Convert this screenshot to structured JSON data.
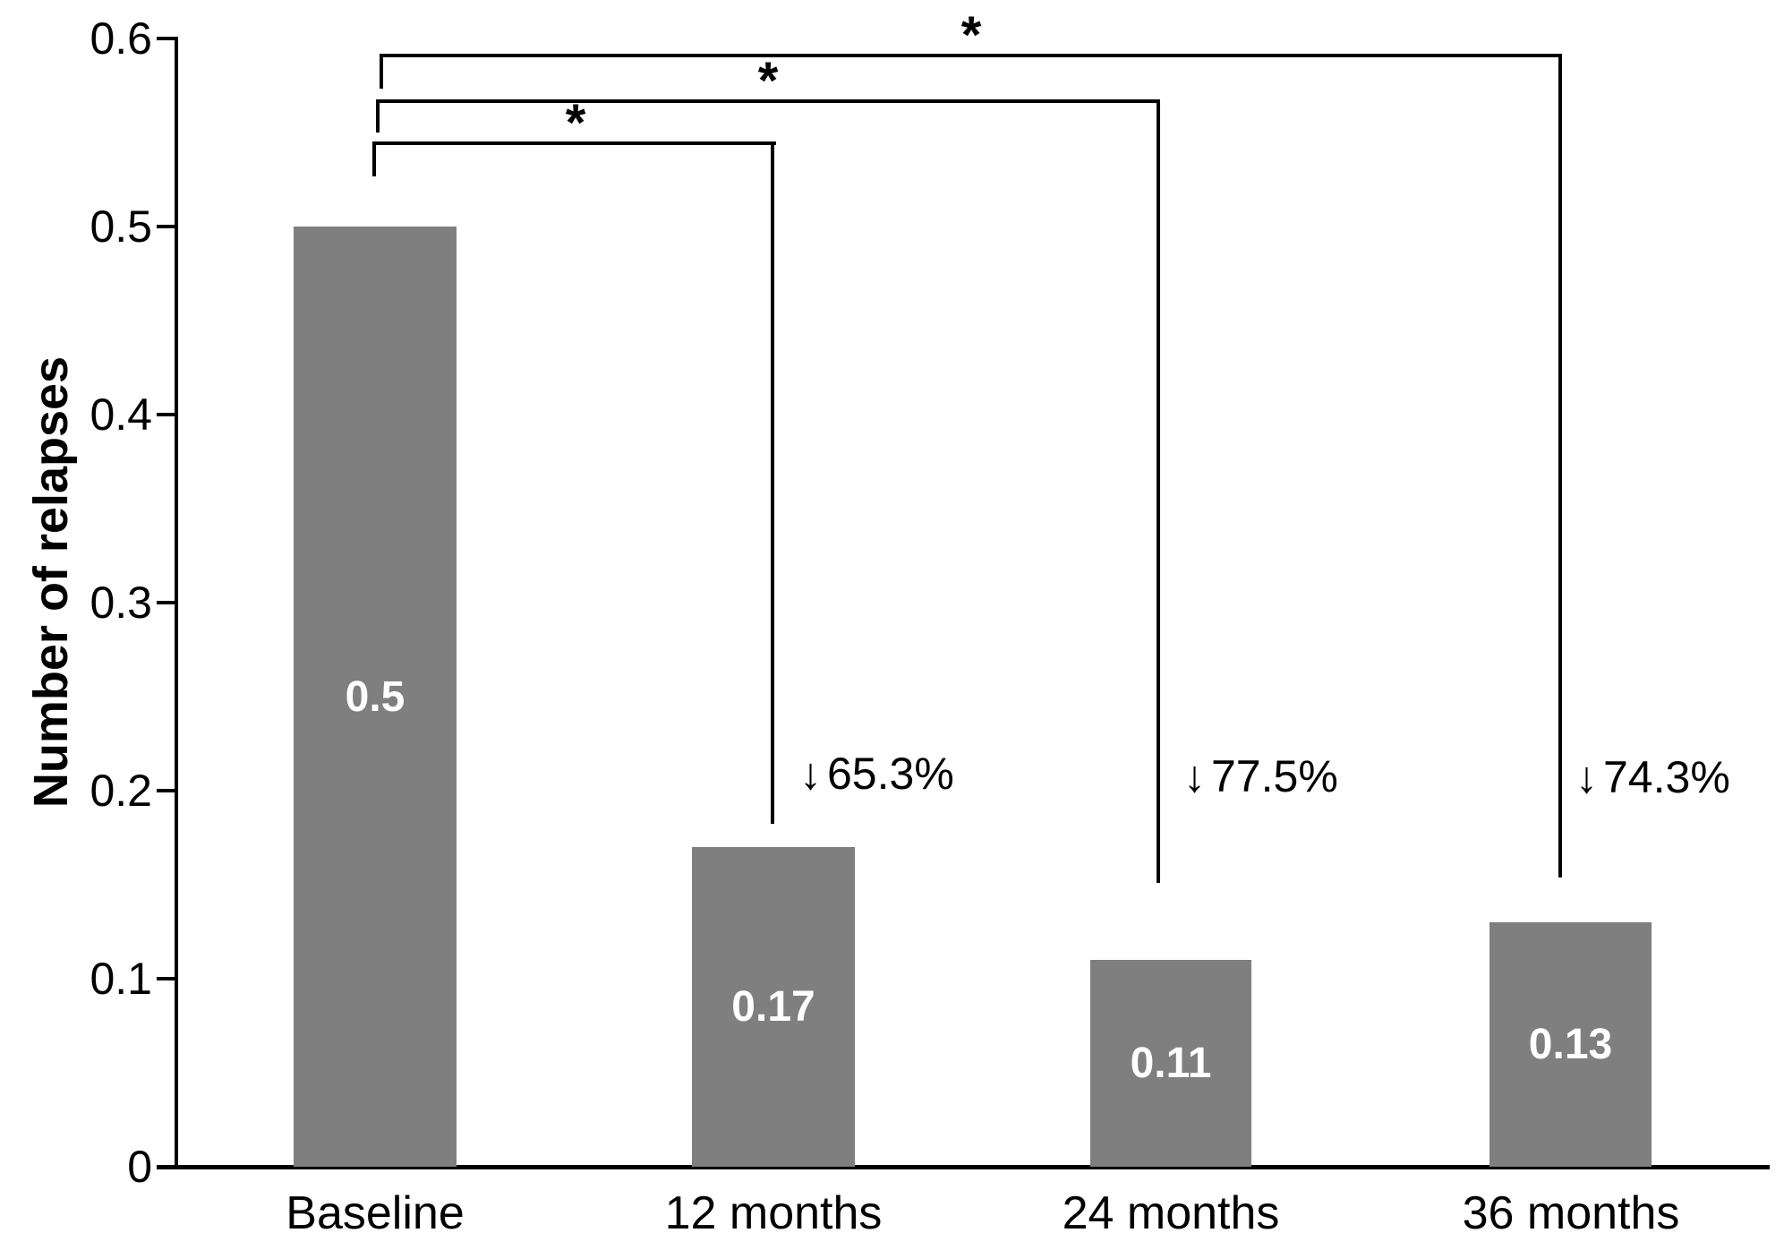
{
  "chart_data": {
    "type": "bar",
    "title": "",
    "xlabel": "",
    "ylabel": "Number of relapses",
    "ylim": [
      0,
      0.6
    ],
    "grid": false,
    "legend": false,
    "bar_color": "#7f7f7f",
    "bar_label_color": "#ffffff",
    "ytick_values": [
      0,
      0.1,
      0.2,
      0.3,
      0.4,
      0.5,
      0.6
    ],
    "ytick_labels": [
      "0",
      "0.1",
      "0.2",
      "0.3",
      "0.4",
      "0.5",
      "0.6"
    ],
    "categories": [
      "Baseline",
      "12 months",
      "24 months",
      "36 months"
    ],
    "values": [
      0.5,
      0.17,
      0.11,
      0.13
    ],
    "bar_labels": [
      "0.5",
      "0.17",
      "0.11",
      "0.13"
    ],
    "reduction_annotations": [
      {
        "category": "12 months",
        "arrow": "↓",
        "text": "65.3%"
      },
      {
        "category": "24 months",
        "arrow": "↓",
        "text": "77.5%"
      },
      {
        "category": "36 months",
        "arrow": "↓",
        "text": "74.3%"
      }
    ],
    "significance_brackets": [
      {
        "from": "Baseline",
        "to": "12 months",
        "symbol": "*"
      },
      {
        "from": "Baseline",
        "to": "24 months",
        "symbol": "*"
      },
      {
        "from": "Baseline",
        "to": "36 months",
        "symbol": "*"
      }
    ]
  }
}
